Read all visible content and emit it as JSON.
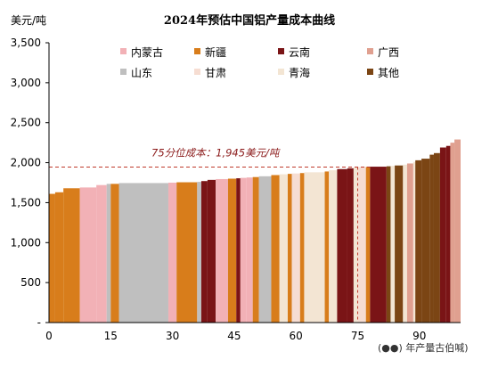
{
  "chart_data": {
    "type": "bar",
    "title": "2024年预估中国铝产量成本曲线",
    "ylabel": "美元/吨",
    "xlabel": "",
    "ylim": [
      0,
      3500
    ],
    "xlim": [
      0,
      100
    ],
    "y_ticks": [
      0,
      500,
      1000,
      1500,
      2000,
      2500,
      3000,
      3500
    ],
    "y_tick_labels": [
      "-",
      "500",
      "1,000",
      "1,500",
      "2,000",
      "2,500",
      "3,000",
      "3,500"
    ],
    "x_ticks": [
      0,
      15,
      30,
      45,
      60,
      75,
      90
    ],
    "x_tick_labels": [
      "0",
      "15",
      "30",
      "45",
      "60",
      "75",
      "90"
    ],
    "grid": false,
    "legend_position": "top",
    "legend": [
      {
        "name": "内蒙古",
        "color": "#F2B1B6"
      },
      {
        "name": "新疆",
        "color": "#D87D1B"
      },
      {
        "name": "云南",
        "color": "#7A1416"
      },
      {
        "name": "广西",
        "color": "#E0A090"
      },
      {
        "name": "山东",
        "color": "#BFBFBF"
      },
      {
        "name": "甘肃",
        "color": "#F6DDD2"
      },
      {
        "name": "青海",
        "color": "#F3E5D3"
      },
      {
        "name": "其他",
        "color": "#7B4514"
      }
    ],
    "reference_line": {
      "value": 1945,
      "label": "75分位成本：1,945美元/吨",
      "color": "#C0392B",
      "style": "dashed"
    },
    "series_blocks": [
      {
        "x0": 0,
        "x1": 1.5,
        "value": 1610,
        "region": "新疆"
      },
      {
        "x0": 1.5,
        "x1": 3.5,
        "value": 1630,
        "region": "新疆"
      },
      {
        "x0": 3.5,
        "x1": 7.5,
        "value": 1680,
        "region": "新疆"
      },
      {
        "x0": 7.5,
        "x1": 11.5,
        "value": 1690,
        "region": "内蒙古"
      },
      {
        "x0": 11.5,
        "x1": 14,
        "value": 1720,
        "region": "内蒙古"
      },
      {
        "x0": 14,
        "x1": 15,
        "value": 1735,
        "region": "山东"
      },
      {
        "x0": 15,
        "x1": 17,
        "value": 1735,
        "region": "新疆"
      },
      {
        "x0": 17,
        "x1": 29,
        "value": 1745,
        "region": "山东"
      },
      {
        "x0": 29,
        "x1": 31,
        "value": 1750,
        "region": "内蒙古"
      },
      {
        "x0": 31,
        "x1": 36,
        "value": 1755,
        "region": "新疆"
      },
      {
        "x0": 36,
        "x1": 37,
        "value": 1760,
        "region": "山东"
      },
      {
        "x0": 37,
        "x1": 38.5,
        "value": 1770,
        "region": "云南"
      },
      {
        "x0": 38.5,
        "x1": 40.5,
        "value": 1785,
        "region": "云南"
      },
      {
        "x0": 40.5,
        "x1": 43.5,
        "value": 1795,
        "region": "内蒙古"
      },
      {
        "x0": 43.5,
        "x1": 45.5,
        "value": 1800,
        "region": "新疆"
      },
      {
        "x0": 45.5,
        "x1": 46.5,
        "value": 1805,
        "region": "云南"
      },
      {
        "x0": 46.5,
        "x1": 48,
        "value": 1810,
        "region": "内蒙古"
      },
      {
        "x0": 48,
        "x1": 49.5,
        "value": 1815,
        "region": "内蒙古"
      },
      {
        "x0": 49.5,
        "x1": 51,
        "value": 1820,
        "region": "新疆"
      },
      {
        "x0": 51,
        "x1": 54,
        "value": 1830,
        "region": "山东"
      },
      {
        "x0": 54,
        "x1": 56,
        "value": 1845,
        "region": "新疆"
      },
      {
        "x0": 56,
        "x1": 58,
        "value": 1855,
        "region": "青海"
      },
      {
        "x0": 58,
        "x1": 59,
        "value": 1860,
        "region": "新疆"
      },
      {
        "x0": 59,
        "x1": 61,
        "value": 1865,
        "region": "甘肃"
      },
      {
        "x0": 61,
        "x1": 62,
        "value": 1870,
        "region": "新疆"
      },
      {
        "x0": 62,
        "x1": 67,
        "value": 1880,
        "region": "青海"
      },
      {
        "x0": 67,
        "x1": 68,
        "value": 1890,
        "region": "新疆"
      },
      {
        "x0": 68,
        "x1": 70,
        "value": 1905,
        "region": "青海"
      },
      {
        "x0": 70,
        "x1": 72.5,
        "value": 1920,
        "region": "云南"
      },
      {
        "x0": 72.5,
        "x1": 74,
        "value": 1930,
        "region": "云南"
      },
      {
        "x0": 74,
        "x1": 75,
        "value": 1940,
        "region": "青海"
      },
      {
        "x0": 75,
        "x1": 77,
        "value": 1945,
        "region": "甘肃"
      },
      {
        "x0": 77,
        "x1": 78,
        "value": 1948,
        "region": "新疆"
      },
      {
        "x0": 78,
        "x1": 82,
        "value": 1950,
        "region": "云南"
      },
      {
        "x0": 82,
        "x1": 83,
        "value": 1955,
        "region": "其他"
      },
      {
        "x0": 83,
        "x1": 84,
        "value": 1960,
        "region": "青海"
      },
      {
        "x0": 84,
        "x1": 86,
        "value": 1965,
        "region": "其他"
      },
      {
        "x0": 86,
        "x1": 87,
        "value": 1975,
        "region": "青海"
      },
      {
        "x0": 87,
        "x1": 88.5,
        "value": 1990,
        "region": "广西"
      },
      {
        "x0": 88.5,
        "x1": 89,
        "value": 2010,
        "region": "青海"
      },
      {
        "x0": 89,
        "x1": 90.5,
        "value": 2030,
        "region": "其他"
      },
      {
        "x0": 90.5,
        "x1": 92.5,
        "value": 2050,
        "region": "其他"
      },
      {
        "x0": 92.5,
        "x1": 93.5,
        "value": 2100,
        "region": "其他"
      },
      {
        "x0": 93.5,
        "x1": 95,
        "value": 2120,
        "region": "其他"
      },
      {
        "x0": 95,
        "x1": 96.5,
        "value": 2190,
        "region": "云南"
      },
      {
        "x0": 96.5,
        "x1": 97.5,
        "value": 2210,
        "region": "云南"
      },
      {
        "x0": 97.5,
        "x1": 98.5,
        "value": 2250,
        "region": "广西"
      },
      {
        "x0": 98.5,
        "x1": 100,
        "value": 2290,
        "region": "广西"
      }
    ]
  },
  "watermark": "(●●) 年产量古伯喊)"
}
